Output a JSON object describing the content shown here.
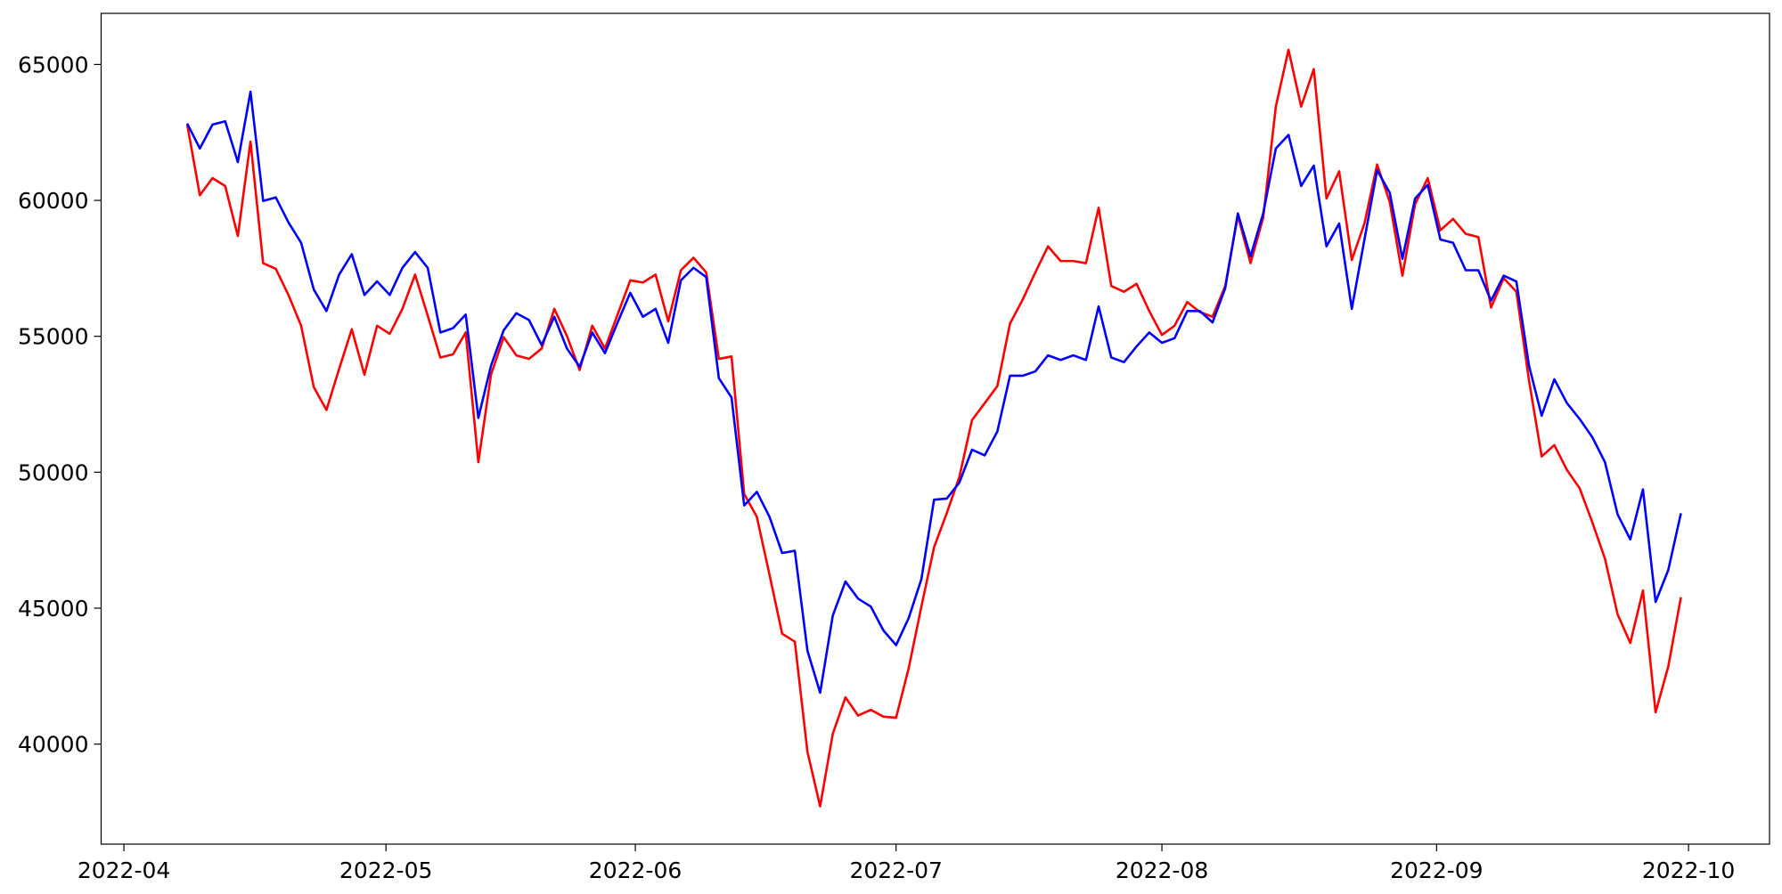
{
  "chart_data": {
    "type": "line",
    "ylim": [
      36320,
      66880
    ],
    "yticks": [
      40000,
      45000,
      50000,
      55000,
      60000,
      65000
    ],
    "xlim": [
      -6.8,
      125
    ],
    "xticks": [
      {
        "value": -5,
        "label": "2022-04"
      },
      {
        "value": 15.7,
        "label": "2022-05"
      },
      {
        "value": 35.4,
        "label": "2022-06"
      },
      {
        "value": 56,
        "label": "2022-07"
      },
      {
        "value": 77,
        "label": "2022-08"
      },
      {
        "value": 98.7,
        "label": "2022-09"
      },
      {
        "value": 118.6,
        "label": "2022-10"
      }
    ],
    "series": [
      {
        "color": "#ff0000",
        "values": [
          62790,
          60190,
          60820,
          60530,
          58690,
          62160,
          57690,
          57480,
          56520,
          55390,
          53130,
          52290,
          53800,
          55260,
          53590,
          55390,
          55090,
          56010,
          57270,
          55760,
          54220,
          54340,
          55140,
          50370,
          53590,
          54970,
          54300,
          54170,
          54550,
          56010,
          55010,
          53760,
          55390,
          54550,
          55800,
          57060,
          56980,
          57270,
          55550,
          57430,
          57890,
          57350,
          54170,
          54260,
          49200,
          48360,
          46230,
          44060,
          43770,
          39710,
          37710,
          40380,
          41720,
          41050,
          41260,
          41010,
          40970,
          42800,
          45060,
          47240,
          48490,
          49830,
          51920,
          52540,
          53170,
          55470,
          56350,
          57350,
          58310,
          57770,
          57770,
          57690,
          59730,
          56850,
          56640,
          56930,
          55930,
          55050,
          55390,
          56260,
          55890,
          55720,
          56850,
          59440,
          57690,
          59360,
          63450,
          65540,
          63450,
          64830,
          60070,
          61070,
          57810,
          59150,
          61320,
          59940,
          57230,
          59860,
          60820,
          58900,
          59320,
          58770,
          58650,
          56060,
          57140,
          56640,
          53380,
          50580,
          51000,
          50080,
          49410,
          48160,
          46820,
          44770,
          43720,
          45650,
          41170,
          42850,
          45400
        ]
      },
      {
        "color": "#0000ff",
        "values": [
          62830,
          61910,
          62790,
          62910,
          61410,
          64000,
          59980,
          60110,
          59190,
          58440,
          56720,
          55930,
          57270,
          58020,
          56520,
          57020,
          56520,
          57520,
          58100,
          57520,
          55140,
          55300,
          55800,
          52000,
          53920,
          55220,
          55850,
          55600,
          54680,
          55720,
          54550,
          53880,
          55140,
          54380,
          55510,
          56600,
          55720,
          56010,
          54760,
          57060,
          57520,
          57180,
          53460,
          52750,
          48780,
          49280,
          48360,
          47030,
          47110,
          43430,
          41890,
          44730,
          45980,
          45350,
          45060,
          44180,
          43640,
          44640,
          46070,
          48990,
          49030,
          49620,
          50830,
          50620,
          51500,
          53550,
          53550,
          53710,
          54300,
          54130,
          54300,
          54130,
          56100,
          54220,
          54050,
          54630,
          55140,
          54760,
          54930,
          55930,
          55930,
          55510,
          56770,
          59520,
          57940,
          59520,
          61910,
          62410,
          60530,
          61280,
          58310,
          59150,
          56010,
          58560,
          61110,
          60280,
          57850,
          60070,
          60570,
          58560,
          58440,
          57430,
          57430,
          56310,
          57230,
          57020,
          53920,
          52080,
          53420,
          52540,
          51960,
          51290,
          50370,
          48450,
          47530,
          49370,
          45230,
          46400,
          48490
        ]
      }
    ]
  }
}
